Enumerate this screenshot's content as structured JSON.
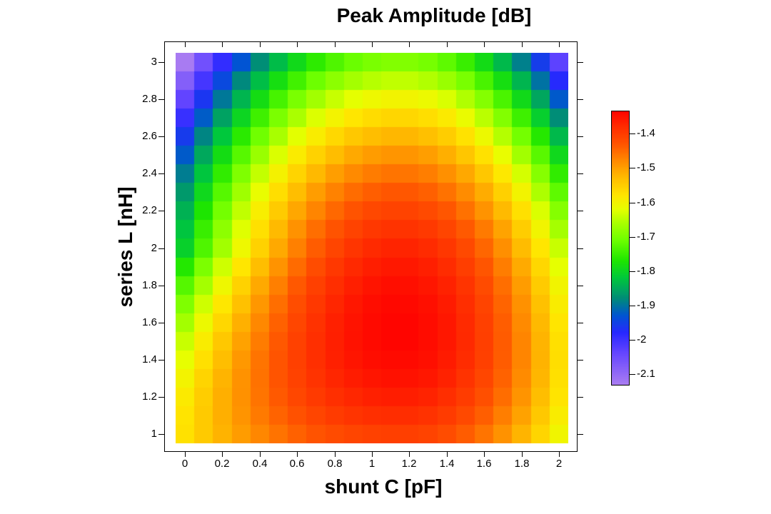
{
  "chart_data": {
    "type": "heatmap",
    "title": "Peak Amplitude [dB]",
    "xlabel": "shunt C [pF]",
    "ylabel": "series L [nH]",
    "x_values": [
      0,
      0.1,
      0.2,
      0.3,
      0.4,
      0.5,
      0.6,
      0.7,
      0.8,
      0.9,
      1,
      1.1,
      1.2,
      1.3,
      1.4,
      1.5,
      1.6,
      1.7,
      1.8,
      1.9,
      2
    ],
    "y_values": [
      1,
      1.1,
      1.2,
      1.3,
      1.4,
      1.5,
      1.6,
      1.7,
      1.8,
      1.9,
      2,
      2.1,
      2.2,
      2.3,
      2.4,
      2.5,
      2.6,
      2.7,
      2.8,
      2.9,
      3
    ],
    "xlim": [
      -0.1,
      2.1
    ],
    "ylim": [
      0.95,
      3.05
    ],
    "orientation_note": "values rows follow y_values (L=1.0 first, plotted at bottom); columns follow x_values (C=0 first, plotted at left)",
    "values": [
      [
        -1.574,
        -1.545,
        -1.519,
        -1.496,
        -1.475,
        -1.457,
        -1.441,
        -1.428,
        -1.418,
        -1.41,
        -1.405,
        -1.402,
        -1.402,
        -1.408,
        -1.419,
        -1.436,
        -1.458,
        -1.486,
        -1.52,
        -1.559,
        -1.604
      ],
      [
        -1.578,
        -1.545,
        -1.515,
        -1.488,
        -1.464,
        -1.443,
        -1.425,
        -1.41,
        -1.398,
        -1.389,
        -1.383,
        -1.38,
        -1.38,
        -1.386,
        -1.398,
        -1.415,
        -1.438,
        -1.467,
        -1.502,
        -1.542,
        -1.589
      ],
      [
        -1.587,
        -1.549,
        -1.515,
        -1.485,
        -1.458,
        -1.434,
        -1.413,
        -1.396,
        -1.383,
        -1.373,
        -1.366,
        -1.362,
        -1.363,
        -1.369,
        -1.381,
        -1.399,
        -1.423,
        -1.452,
        -1.488,
        -1.53,
        -1.578
      ],
      [
        -1.6,
        -1.558,
        -1.52,
        -1.486,
        -1.456,
        -1.429,
        -1.406,
        -1.387,
        -1.372,
        -1.361,
        -1.353,
        -1.349,
        -1.35,
        -1.356,
        -1.368,
        -1.387,
        -1.411,
        -1.442,
        -1.479,
        -1.522,
        -1.572
      ],
      [
        -1.618,
        -1.572,
        -1.53,
        -1.492,
        -1.458,
        -1.429,
        -1.404,
        -1.383,
        -1.366,
        -1.353,
        -1.345,
        -1.341,
        -1.341,
        -1.347,
        -1.36,
        -1.379,
        -1.404,
        -1.436,
        -1.474,
        -1.519,
        -1.57
      ],
      [
        -1.64,
        -1.589,
        -1.543,
        -1.502,
        -1.465,
        -1.433,
        -1.405,
        -1.382,
        -1.364,
        -1.35,
        -1.341,
        -1.336,
        -1.336,
        -1.343,
        -1.356,
        -1.376,
        -1.402,
        -1.435,
        -1.474,
        -1.52,
        -1.572
      ],
      [
        -1.666,
        -1.611,
        -1.561,
        -1.516,
        -1.476,
        -1.441,
        -1.411,
        -1.386,
        -1.366,
        -1.351,
        -1.341,
        -1.336,
        -1.336,
        -1.343,
        -1.356,
        -1.377,
        -1.404,
        -1.437,
        -1.478,
        -1.525,
        -1.579
      ],
      [
        -1.696,
        -1.636,
        -1.582,
        -1.534,
        -1.491,
        -1.453,
        -1.42,
        -1.394,
        -1.372,
        -1.356,
        -1.345,
        -1.339,
        -1.34,
        -1.347,
        -1.36,
        -1.381,
        -1.409,
        -1.444,
        -1.485,
        -1.534,
        -1.589
      ],
      [
        -1.729,
        -1.665,
        -1.607,
        -1.555,
        -1.509,
        -1.468,
        -1.433,
        -1.404,
        -1.381,
        -1.364,
        -1.352,
        -1.346,
        -1.347,
        -1.354,
        -1.368,
        -1.389,
        -1.418,
        -1.453,
        -1.496,
        -1.546,
        -1.603
      ],
      [
        -1.766,
        -1.698,
        -1.636,
        -1.58,
        -1.53,
        -1.487,
        -1.45,
        -1.419,
        -1.394,
        -1.375,
        -1.363,
        -1.357,
        -1.357,
        -1.364,
        -1.379,
        -1.401,
        -1.43,
        -1.466,
        -1.51,
        -1.561,
        -1.62
      ],
      [
        -1.806,
        -1.733,
        -1.667,
        -1.608,
        -1.555,
        -1.509,
        -1.469,
        -1.436,
        -1.41,
        -1.39,
        -1.377,
        -1.37,
        -1.37,
        -1.378,
        -1.393,
        -1.415,
        -1.445,
        -1.483,
        -1.528,
        -1.58,
        -1.64
      ],
      [
        -1.823,
        -1.75,
        -1.684,
        -1.625,
        -1.572,
        -1.526,
        -1.486,
        -1.453,
        -1.427,
        -1.407,
        -1.394,
        -1.387,
        -1.387,
        -1.395,
        -1.41,
        -1.434,
        -1.464,
        -1.503,
        -1.549,
        -1.603,
        -1.664
      ],
      [
        -1.843,
        -1.771,
        -1.705,
        -1.645,
        -1.592,
        -1.546,
        -1.507,
        -1.474,
        -1.447,
        -1.427,
        -1.414,
        -1.408,
        -1.408,
        -1.416,
        -1.431,
        -1.455,
        -1.487,
        -1.526,
        -1.573,
        -1.628,
        -1.691
      ],
      [
        -1.867,
        -1.794,
        -1.728,
        -1.669,
        -1.616,
        -1.57,
        -1.53,
        -1.497,
        -1.471,
        -1.451,
        -1.438,
        -1.431,
        -1.432,
        -1.44,
        -1.456,
        -1.48,
        -1.512,
        -1.553,
        -1.601,
        -1.658,
        -1.722
      ],
      [
        -1.894,
        -1.822,
        -1.756,
        -1.696,
        -1.643,
        -1.597,
        -1.558,
        -1.525,
        -1.498,
        -1.478,
        -1.465,
        -1.458,
        -1.459,
        -1.467,
        -1.484,
        -1.508,
        -1.541,
        -1.583,
        -1.632,
        -1.69,
        -1.756
      ],
      [
        -1.925,
        -1.852,
        -1.786,
        -1.727,
        -1.674,
        -1.628,
        -1.588,
        -1.555,
        -1.529,
        -1.509,
        -1.496,
        -1.489,
        -1.489,
        -1.498,
        -1.515,
        -1.54,
        -1.574,
        -1.616,
        -1.667,
        -1.726,
        -1.794
      ],
      [
        -1.959,
        -1.886,
        -1.82,
        -1.761,
        -1.708,
        -1.662,
        -1.622,
        -1.589,
        -1.563,
        -1.543,
        -1.53,
        -1.523,
        -1.523,
        -1.532,
        -1.549,
        -1.575,
        -1.61,
        -1.653,
        -1.705,
        -1.765,
        -1.835
      ],
      [
        -1.996,
        -1.924,
        -1.858,
        -1.798,
        -1.745,
        -1.699,
        -1.66,
        -1.627,
        -1.6,
        -1.58,
        -1.567,
        -1.56,
        -1.561,
        -1.57,
        -1.587,
        -1.614,
        -1.649,
        -1.693,
        -1.746,
        -1.808,
        -1.879
      ],
      [
        -2.037,
        -1.964,
        -1.898,
        -1.839,
        -1.786,
        -1.74,
        -1.7,
        -1.667,
        -1.641,
        -1.621,
        -1.608,
        -1.601,
        -1.602,
        -1.611,
        -1.629,
        -1.656,
        -1.692,
        -1.737,
        -1.791,
        -1.854,
        -1.926
      ],
      [
        -2.081,
        -2.009,
        -1.943,
        -1.883,
        -1.83,
        -1.784,
        -1.744,
        -1.711,
        -1.685,
        -1.665,
        -1.652,
        -1.645,
        -1.646,
        -1.655,
        -1.674,
        -1.701,
        -1.738,
        -1.784,
        -1.839,
        -1.904,
        -1.978
      ],
      [
        -2.129,
        -2.056,
        -1.99,
        -1.931,
        -1.878,
        -1.832,
        -1.792,
        -1.759,
        -1.733,
        -1.713,
        -1.7,
        -1.693,
        -1.694,
        -1.703,
        -1.722,
        -1.75,
        -1.788,
        -1.835,
        -1.891,
        -1.957,
        -2.032
      ]
    ],
    "x_ticks": {
      "values": [
        0,
        0.2,
        0.4,
        0.6,
        0.8,
        1,
        1.2,
        1.4,
        1.6,
        1.8,
        2
      ],
      "labels": [
        "0",
        "0.2",
        "0.4",
        "0.6",
        "0.8",
        "1",
        "1.2",
        "1.4",
        "1.6",
        "1.8",
        "2"
      ]
    },
    "y_ticks": {
      "values": [
        1,
        1.2,
        1.4,
        1.6,
        1.8,
        2,
        2.2,
        2.4,
        2.6,
        2.8,
        3
      ],
      "labels": [
        "1",
        "1.2",
        "1.4",
        "1.6",
        "1.8",
        "2",
        "2.2",
        "2.4",
        "2.6",
        "2.8",
        "3"
      ]
    },
    "colorbar": {
      "min": -2.131,
      "max": -1.335,
      "ticks": {
        "values": [
          -1.4,
          -1.5,
          -1.6,
          -1.7,
          -1.8,
          -1.9,
          -2,
          -2.1
        ],
        "labels": [
          "-1.4",
          "-1.5",
          "-1.6",
          "-1.7",
          "-1.8",
          "-1.9",
          "-2",
          "-2.1"
        ]
      },
      "colormap_stops": [
        [
          -2.13,
          "#A97CF2"
        ],
        [
          -2.04,
          "#6546FF"
        ],
        [
          -1.98,
          "#2828FF"
        ],
        [
          -1.93,
          "#0055D2"
        ],
        [
          -1.88,
          "#008C78"
        ],
        [
          -1.82,
          "#00C83C"
        ],
        [
          -1.77,
          "#1EE600"
        ],
        [
          -1.71,
          "#6EFF00"
        ],
        [
          -1.66,
          "#AAFF00"
        ],
        [
          -1.62,
          "#E6FF00"
        ],
        [
          -1.58,
          "#FFE600"
        ],
        [
          -1.53,
          "#FFBE00"
        ],
        [
          -1.48,
          "#FF8C00"
        ],
        [
          -1.43,
          "#FF5500"
        ],
        [
          -1.38,
          "#FF2D00"
        ],
        [
          -1.33,
          "#FF0000"
        ]
      ]
    }
  }
}
